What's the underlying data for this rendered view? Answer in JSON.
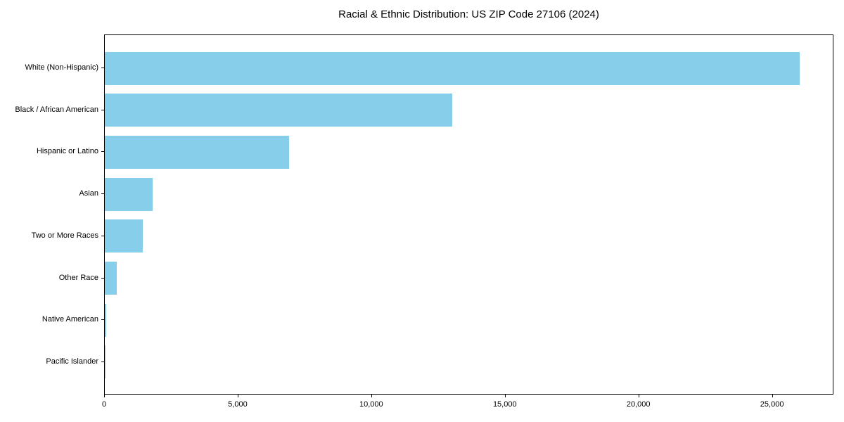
{
  "title": "Racial & Ethnic Distribution: US ZIP Code 27106 (2024)",
  "chart_data": {
    "type": "bar",
    "orientation": "horizontal",
    "title": "Racial & Ethnic Distribution: US ZIP Code 27106 (2024)",
    "xlabel": "",
    "ylabel": "",
    "categories": [
      "White (Non-Hispanic)",
      "Black / African American",
      "Hispanic or Latino",
      "Asian",
      "Two or More Races",
      "Other Race",
      "Native American",
      "Pacific Islander"
    ],
    "values": [
      26000,
      13000,
      6900,
      1790,
      1420,
      450,
      50,
      20
    ],
    "xlim": [
      0,
      27300
    ],
    "x_ticks": [
      0,
      5000,
      10000,
      15000,
      20000,
      25000
    ],
    "x_tick_labels": [
      "0",
      "5,000",
      "10,000",
      "15,000",
      "20,000",
      "25,000"
    ],
    "bar_color": "#87CEEB",
    "text_color": "#000000",
    "background_color": "#FFFFFF",
    "grid": false,
    "legend": "none"
  }
}
